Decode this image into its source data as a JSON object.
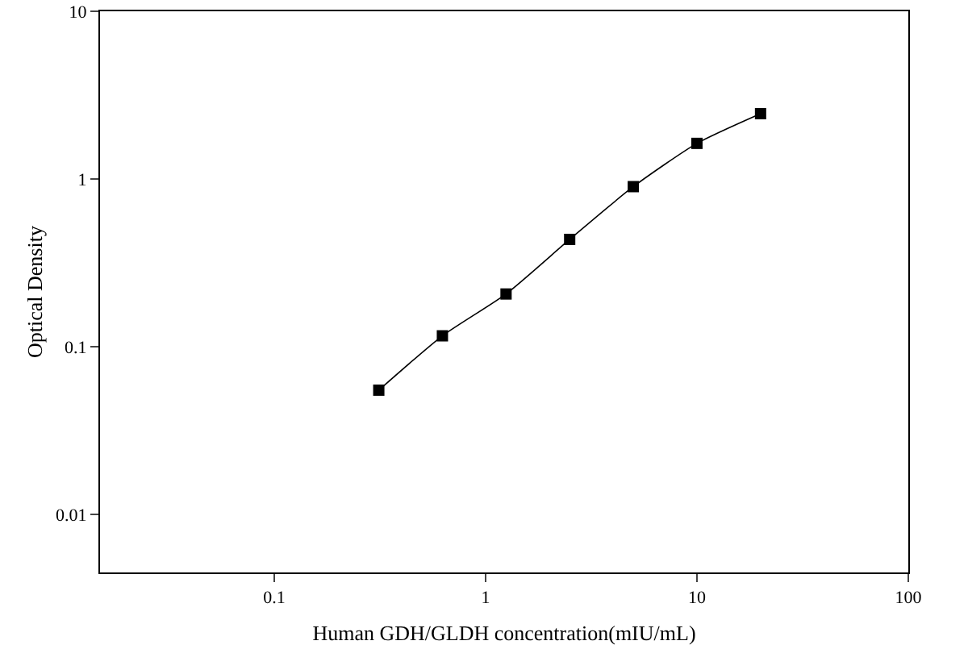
{
  "chart_data": {
    "type": "line",
    "xlabel": "Human GDH/GLDH concentration(mIU/mL)",
    "ylabel": "Optical Density",
    "log": "xy",
    "grid": false,
    "marker": "square",
    "line_style": "solid",
    "x": [
      0.3125,
      0.625,
      1.25,
      2.5,
      5,
      10,
      20
    ],
    "series": [
      {
        "color": "#000000",
        "values": [
          0.055,
          0.116,
          0.206,
          0.436,
          0.9,
          1.63,
          2.45
        ]
      }
    ],
    "xlim": [
      0.015,
      100
    ],
    "xticks": [
      0.1,
      1,
      10,
      100
    ],
    "ylim": [
      0.0045,
      10
    ],
    "yticks": [
      0.01,
      0.1,
      1,
      10
    ]
  }
}
